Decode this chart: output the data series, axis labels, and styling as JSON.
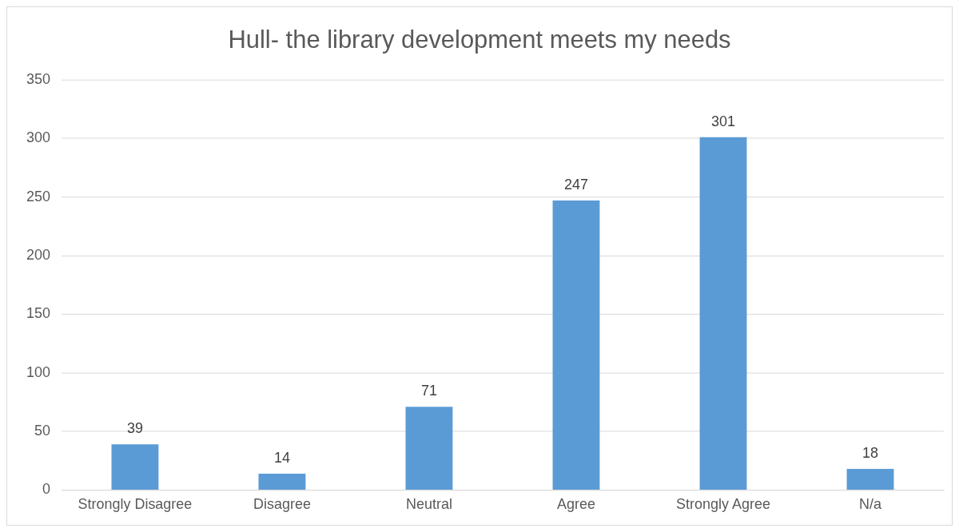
{
  "chart_data": {
    "type": "bar",
    "title": "Hull- the library development meets my needs",
    "categories": [
      "Strongly Disagree",
      "Disagree",
      "Neutral",
      "Agree",
      "Strongly Agree",
      "N/a"
    ],
    "values": [
      39,
      14,
      71,
      247,
      301,
      18
    ],
    "color": "#5b9bd5",
    "ylim": [
      0,
      350
    ],
    "yticks": [
      0,
      50,
      100,
      150,
      200,
      250,
      300,
      350
    ],
    "grid": "y",
    "data_labels": true,
    "legend": false
  }
}
